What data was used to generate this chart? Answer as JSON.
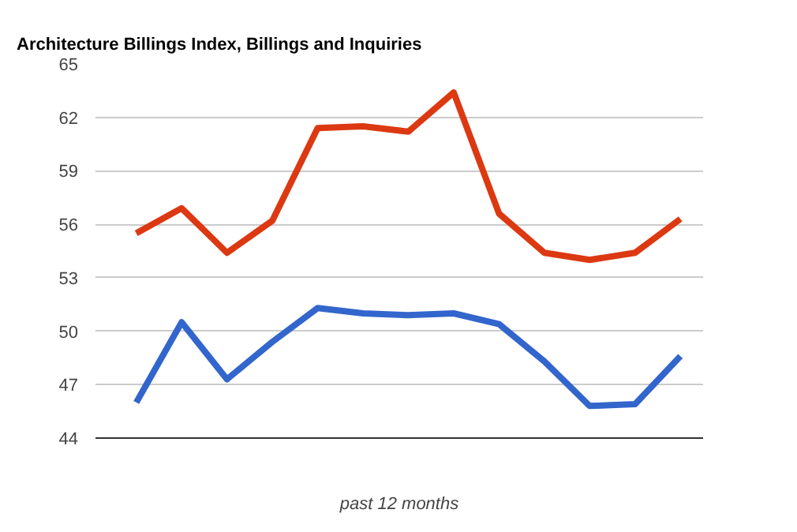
{
  "chart_data": {
    "type": "line",
    "title": "Architecture Billings Index, Billings and Inquiries",
    "xlabel": "past 12 months",
    "categories": [
      null,
      null,
      null,
      null,
      null,
      null,
      null,
      null,
      null,
      null,
      null,
      null,
      null
    ],
    "series": [
      {
        "color": "#dc3912",
        "values": [
          55.5,
          56.9,
          54.4,
          56.2,
          61.4,
          61.5,
          61.2,
          63.4,
          56.6,
          54.4,
          54.0,
          54.4,
          56.3
        ]
      },
      {
        "color": "#3366cc",
        "values": [
          46.0,
          50.5,
          47.3,
          49.4,
          51.3,
          51.0,
          50.9,
          51.0,
          50.4,
          48.3,
          45.8,
          45.9,
          48.6
        ]
      }
    ],
    "ylim": [
      44,
      65
    ],
    "yticks": [
      44,
      47,
      50,
      53,
      56,
      59,
      62,
      65
    ],
    "grid": "y",
    "tick_labels": "y",
    "line_style": "solid",
    "marker": "none"
  }
}
